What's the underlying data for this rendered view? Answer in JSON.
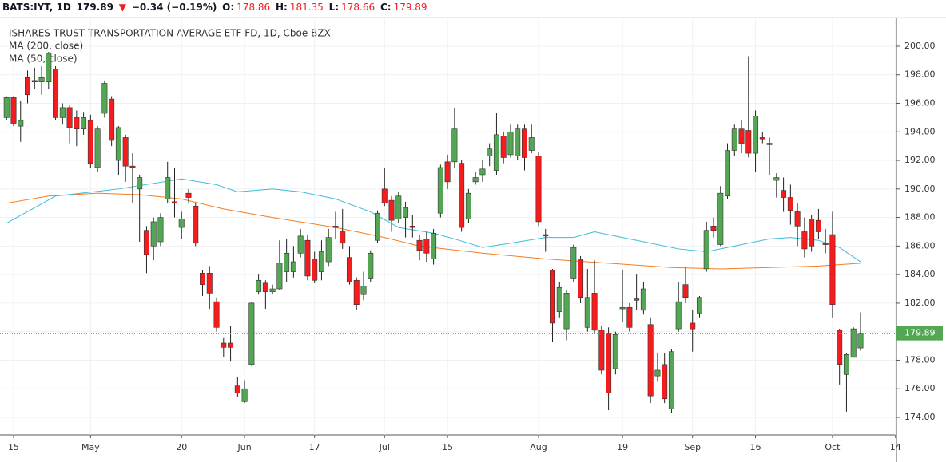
{
  "header": {
    "symbol": "BATS:IYT, 1D",
    "last": "179.89",
    "arrow": "▼",
    "change": "−0.34 (−0.19%)",
    "open_label": "O:",
    "open": "178.86",
    "high_label": "H:",
    "high": "181.35",
    "low_label": "L:",
    "low": "178.66",
    "close_label": "C:",
    "close": "179.89"
  },
  "chart_data": {
    "type": "candlestick",
    "title": "ISHARES TRUST TRANSPORTATION AVERAGE ETF FD, 1D, Cboe BZX",
    "categories": [
      null,
      "15",
      null,
      null,
      null,
      null,
      null,
      null,
      null,
      null,
      null,
      null,
      "May",
      null,
      null,
      null,
      null,
      null,
      null,
      null,
      null,
      null,
      null,
      null,
      null,
      "20",
      null,
      null,
      null,
      null,
      null,
      null,
      null,
      null,
      "Jun",
      null,
      null,
      null,
      null,
      null,
      null,
      null,
      null,
      null,
      "17",
      null,
      null,
      null,
      null,
      null,
      null,
      null,
      null,
      null,
      "Jul",
      null,
      null,
      null,
      null,
      null,
      null,
      null,
      null,
      "15",
      null,
      null,
      null,
      null,
      null,
      null,
      null,
      null,
      null,
      null,
      null,
      null,
      "Aug",
      null,
      null,
      null,
      null,
      null,
      null,
      null,
      null,
      null,
      null,
      null,
      "19",
      null,
      null,
      null,
      null,
      null,
      null,
      null,
      null,
      null,
      "Sep",
      null,
      null,
      null,
      null,
      null,
      null,
      null,
      null,
      "16",
      null,
      null,
      null,
      null,
      null,
      null,
      null,
      null,
      null,
      null,
      "Oct",
      null,
      null,
      null,
      null,
      null,
      null,
      null,
      null,
      "14"
    ],
    "open": [
      195.0,
      196.4,
      194.4,
      197.8,
      197.6,
      197.5,
      197.5,
      198.4,
      195.0,
      195.7,
      195.0,
      194.2,
      194.8,
      191.5,
      195.3,
      196.3,
      192.0,
      193.6,
      191.6,
      190.0,
      187.1,
      186.0,
      186.3,
      189.3,
      189.1,
      187.3,
      189.7,
      188.8,
      184.1,
      184.1,
      182.1,
      179.2,
      179.2,
      176.2,
      175.1,
      177.7,
      182.8,
      183.4,
      182.8,
      183.0,
      184.2,
      184.2,
      185.5,
      186.4,
      185.1,
      184.2,
      184.9,
      187.4,
      187.0,
      185.2,
      183.6,
      182.6,
      183.7,
      186.4,
      190.0,
      189.2,
      187.9,
      188.0,
      187.4,
      186.4,
      186.5,
      185.1,
      188.3,
      191.9,
      191.9,
      191.8,
      187.9,
      190.5,
      191.0,
      192.3,
      191.3,
      193.7,
      192.4,
      192.3,
      194.2,
      192.7,
      192.3,
      186.8,
      184.3,
      181.4,
      180.2,
      183.7,
      185.1,
      180.3,
      182.7,
      180.1,
      179.9,
      177.4,
      181.6,
      181.7,
      182.3,
      181.5,
      180.5,
      176.9,
      177.7,
      174.6,
      180.2,
      183.3,
      180.6,
      181.3,
      184.4,
      187.4,
      186.1,
      189.5,
      192.7,
      194.2,
      194.1,
      192.5,
      193.6,
      193.2,
      190.6,
      189.9,
      189.4,
      188.4,
      187.0,
      187.9,
      187.8,
      186.2,
      186.8,
      180.1,
      177.0,
      178.2,
      178.86,
      null,
      null,
      null,
      null,
      null
    ],
    "high": [
      196.5,
      196.5,
      196.2,
      198.3,
      198.5,
      198.6,
      199.6,
      198.6,
      196.0,
      195.9,
      195.5,
      195.4,
      195.2,
      194.4,
      197.6,
      196.5,
      194.4,
      193.8,
      192.5,
      191.0,
      187.4,
      188.0,
      188.3,
      191.9,
      191.5,
      188.4,
      190.0,
      189.0,
      184.3,
      184.6,
      182.4,
      179.6,
      180.4,
      176.8,
      176.6,
      182.1,
      184.0,
      183.6,
      183.3,
      186.4,
      186.5,
      186.0,
      187.2,
      186.8,
      185.6,
      186.4,
      187.2,
      188.4,
      188.6,
      186.0,
      183.8,
      184.2,
      185.7,
      188.5,
      191.5,
      189.5,
      189.8,
      189.1,
      188.2,
      186.8,
      187.0,
      187.2,
      191.7,
      192.4,
      195.7,
      192.0,
      190.0,
      191.2,
      192.0,
      193.2,
      195.3,
      194.0,
      194.5,
      194.5,
      194.5,
      194.5,
      192.6,
      187.2,
      184.4,
      183.5,
      182.9,
      186.1,
      185.3,
      184.4,
      185.0,
      180.4,
      180.3,
      180.0,
      184.3,
      182.0,
      184.0,
      183.5,
      181.0,
      178.5,
      178.5,
      178.8,
      183.5,
      184.5,
      181.5,
      182.5,
      187.7,
      188.0,
      190.2,
      193.2,
      194.5,
      194.8,
      199.3,
      195.5,
      194.0,
      193.6,
      191.1,
      190.8,
      190.3,
      189.0,
      188.0,
      188.2,
      188.6,
      187.2,
      188.4,
      180.2,
      178.5,
      180.3,
      181.35,
      null,
      null,
      null,
      null,
      null
    ],
    "low": [
      194.8,
      194.4,
      193.3,
      196.0,
      197.0,
      196.6,
      197.0,
      194.8,
      194.5,
      193.2,
      193.0,
      193.8,
      191.5,
      191.2,
      195.0,
      193.0,
      191.0,
      190.5,
      189.0,
      186.3,
      184.1,
      185.0,
      186.0,
      189.0,
      188.0,
      186.5,
      189.0,
      186.0,
      182.5,
      181.6,
      180.0,
      178.2,
      177.9,
      175.4,
      175.0,
      177.6,
      182.6,
      181.6,
      182.6,
      182.9,
      183.5,
      183.8,
      185.2,
      183.6,
      183.4,
      183.6,
      184.6,
      186.5,
      185.8,
      183.3,
      181.5,
      182.2,
      183.5,
      186.2,
      188.8,
      187.0,
      187.6,
      186.6,
      186.6,
      185.0,
      184.9,
      184.7,
      188.0,
      190.0,
      191.5,
      187.0,
      187.6,
      190.3,
      190.5,
      191.6,
      191.0,
      191.8,
      192.2,
      192.0,
      191.3,
      192.5,
      187.4,
      185.6,
      179.3,
      181.0,
      179.4,
      183.5,
      182.0,
      180.0,
      179.9,
      177.0,
      174.5,
      177.0,
      180.7,
      180.0,
      181.5,
      181.2,
      175.0,
      176.5,
      175.0,
      174.3,
      180.0,
      182.0,
      178.6,
      181.0,
      184.2,
      186.6,
      186.0,
      189.3,
      192.3,
      192.5,
      192.2,
      191.2,
      193.2,
      191.0,
      189.4,
      188.4,
      187.5,
      186.0,
      185.2,
      185.6,
      186.5,
      185.5,
      181.0,
      176.3,
      174.4,
      178.2,
      178.66,
      null,
      null,
      null,
      null,
      null
    ],
    "close": [
      196.4,
      194.6,
      194.8,
      196.6,
      197.5,
      197.8,
      199.5,
      195.0,
      195.7,
      194.3,
      194.2,
      195.0,
      191.8,
      194.2,
      197.4,
      193.4,
      194.3,
      191.6,
      191.5,
      190.8,
      185.4,
      187.7,
      188.0,
      190.8,
      189.0,
      187.9,
      189.4,
      186.2,
      183.3,
      182.7,
      180.3,
      178.9,
      178.9,
      175.7,
      176.0,
      182.0,
      183.6,
      182.8,
      183.0,
      184.8,
      185.5,
      184.9,
      186.7,
      183.9,
      183.6,
      185.6,
      186.6,
      187.3,
      186.2,
      183.5,
      181.9,
      183.2,
      185.5,
      188.3,
      189.0,
      187.8,
      189.5,
      188.7,
      187.3,
      185.7,
      185.5,
      186.9,
      191.5,
      190.5,
      194.2,
      187.3,
      189.7,
      190.8,
      191.4,
      192.8,
      193.8,
      192.2,
      194.0,
      194.2,
      192.2,
      193.6,
      187.7,
      186.7,
      180.6,
      183.1,
      182.7,
      185.9,
      182.4,
      182.4,
      180.1,
      177.3,
      175.7,
      179.8,
      181.7,
      180.3,
      182.2,
      183.0,
      175.5,
      177.3,
      175.3,
      178.6,
      182.1,
      182.4,
      180.2,
      182.4,
      187.1,
      187.1,
      189.7,
      192.7,
      194.2,
      193.2,
      192.5,
      195.1,
      193.5,
      193.1,
      190.8,
      189.4,
      188.5,
      187.4,
      185.8,
      186.0,
      187.0,
      186.1,
      181.9,
      177.7,
      178.4,
      180.2,
      179.89,
      null,
      null,
      null,
      null,
      null
    ],
    "up_color": "#53a653",
    "down_color": "#f41c1c",
    "lines": [
      {
        "name": "MA (200, close)",
        "color": "#f57c1f",
        "x": [
          0,
          6,
          13,
          19,
          25,
          31,
          38,
          47,
          54,
          59,
          68,
          77,
          86,
          95,
          102,
          109,
          116,
          122
        ],
        "values": [
          189.0,
          189.5,
          189.7,
          189.6,
          189.3,
          188.6,
          188.0,
          187.3,
          186.6,
          186.0,
          185.5,
          185.1,
          184.8,
          184.5,
          184.4,
          184.5,
          184.6,
          184.8
        ]
      },
      {
        "name": "MA (50, close)",
        "color": "#3bbcd6",
        "x": [
          0,
          7,
          16,
          25,
          30,
          33,
          38,
          42,
          47,
          52,
          56,
          61,
          64,
          68,
          72,
          77,
          81,
          84,
          87,
          92,
          96,
          100,
          104,
          109,
          112,
          116,
          119,
          122
        ],
        "values": [
          187.6,
          189.5,
          190.0,
          190.7,
          190.3,
          189.8,
          190.0,
          189.8,
          189.3,
          188.4,
          187.3,
          186.9,
          186.5,
          185.9,
          186.2,
          186.6,
          186.6,
          187.0,
          186.7,
          186.2,
          185.8,
          185.6,
          186.0,
          186.5,
          186.6,
          186.4,
          185.9,
          184.9
        ]
      }
    ],
    "ylim": [
      172.77,
      202.01
    ],
    "yticks": [
      {
        "value": 174,
        "label": "174.00"
      },
      {
        "value": 176,
        "label": "176.00"
      },
      {
        "value": 178,
        "label": "178.00"
      },
      {
        "value": 180,
        "label": "180.00"
      },
      {
        "value": 182,
        "label": "182.00"
      },
      {
        "value": 184,
        "label": "184.00"
      },
      {
        "value": 186,
        "label": "186.00"
      },
      {
        "value": 188,
        "label": "188.00"
      },
      {
        "value": 190,
        "label": "190.00"
      },
      {
        "value": 192,
        "label": "192.00"
      },
      {
        "value": 194,
        "label": "194.00"
      },
      {
        "value": 196,
        "label": "196.00"
      },
      {
        "value": 198,
        "label": "198.00"
      },
      {
        "value": 200,
        "label": "200.00"
      }
    ],
    "grid": true
  }
}
